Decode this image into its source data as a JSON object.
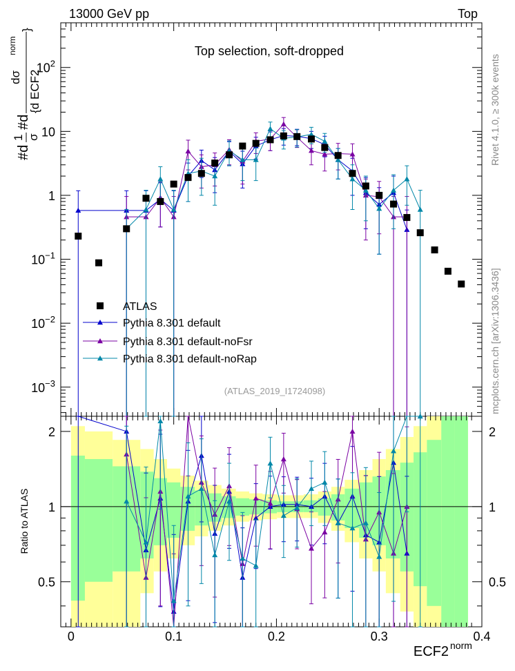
{
  "header": {
    "left": "13000 GeV pp",
    "right": "Top"
  },
  "side_right_top": "Rivet 4.1.0, ≥ 300k events",
  "side_right_bottom": "mcplots.cern.ch [arXiv:1306.3436]",
  "chart_data": {
    "type": "scatter",
    "title": "Top selection, soft-dropped",
    "analysis": "(ATLAS_2019_I1724098)",
    "xlabel": "ECF2",
    "xlabel_sup": "norm",
    "ylabel": "#d1/σ #d dσ/{d ECF2^norm}",
    "ylabel_parts": {
      "a": "#d",
      "b": "1",
      "c": "σ",
      "d": "#d",
      "e": "dσ",
      "f": "{d ECF2",
      "g": "norm",
      "h": "}"
    },
    "ratio_ylabel": "Ratio to ATLAS",
    "xlim": [
      -0.01,
      0.4
    ],
    "ylim": [
      0.00035,
      500
    ],
    "yscale": "log",
    "ratio_ylim": [
      0.33,
      2.3
    ],
    "x_ticks": [
      "0",
      "0.1",
      "0.2",
      "0.3",
      "0.4"
    ],
    "y_ticks": [
      {
        "base": "10",
        "exp": "−3"
      },
      {
        "base": "10",
        "exp": "−2"
      },
      {
        "base": "10",
        "exp": "−1"
      },
      {
        "base": "1",
        "exp": ""
      },
      {
        "base": "10",
        "exp": ""
      },
      {
        "base": "10",
        "exp": "2"
      }
    ],
    "ratio_ticks": [
      "0.5",
      "1",
      "2"
    ],
    "legend": [
      {
        "label": "ATLAS",
        "color": "#000000",
        "marker": "square"
      },
      {
        "label": "Pythia 8.301 default",
        "color": "#0000cc",
        "marker": "triangle"
      },
      {
        "label": "Pythia 8.301 default-noFsr",
        "color": "#7a00a3",
        "marker": "triangle"
      },
      {
        "label": "Pythia 8.301 default-noRap",
        "color": "#0087a8",
        "marker": "triangle"
      }
    ],
    "atlas": {
      "x": [
        0.007,
        0.027,
        0.054,
        0.073,
        0.087,
        0.1,
        0.114,
        0.127,
        0.14,
        0.154,
        0.167,
        0.18,
        0.194,
        0.207,
        0.22,
        0.234,
        0.247,
        0.26,
        0.274,
        0.287,
        0.3,
        0.314,
        0.327,
        0.34,
        0.354,
        0.367,
        0.38
      ],
      "y": [
        0.23,
        0.088,
        0.3,
        0.9,
        0.8,
        1.5,
        1.9,
        2.2,
        3.2,
        4.3,
        5.9,
        6.5,
        7.4,
        8.5,
        8.3,
        7.6,
        5.6,
        4.2,
        2.2,
        1.4,
        1.0,
        0.73,
        0.45,
        0.26,
        0.14,
        0.065,
        0.041
      ]
    },
    "series": [
      {
        "name": "Pythia 8.301 default",
        "x": [
          0.007,
          0.054,
          0.073,
          0.087,
          0.1,
          0.114,
          0.127,
          0.14,
          0.154,
          0.167,
          0.18,
          0.194,
          0.207,
          0.22,
          0.234,
          0.247,
          0.26,
          0.274,
          0.287,
          0.3,
          0.314,
          0.327
        ],
        "y": [
          0.58,
          0.58,
          0.58,
          0.87,
          0.58,
          2.0,
          3.5,
          2.5,
          4.9,
          3.1,
          5.9,
          7.4,
          8.6,
          8.4,
          7.7,
          6.2,
          3.6,
          2.4,
          1.1,
          0.72,
          1.1,
          0.29
        ],
        "err_lo": [
          0.58,
          0.58,
          0.58,
          0.55,
          0.58,
          1.2,
          1.6,
          1.4,
          2.0,
          1.8,
          2.2,
          2.4,
          2.5,
          2.4,
          2.3,
          2.2,
          1.8,
          1.4,
          0.8,
          0.6,
          1.1,
          0.29
        ],
        "err_hi": [
          0.6,
          0.6,
          0.6,
          0.7,
          0.6,
          1.2,
          1.6,
          1.4,
          2.0,
          1.8,
          2.2,
          2.4,
          2.5,
          2.4,
          2.3,
          2.2,
          1.8,
          1.4,
          0.8,
          0.6,
          0.9,
          0.3
        ],
        "ratio": [
          2.5,
          2.0,
          0.67,
          1.08,
          0.38,
          1.05,
          1.6,
          0.78,
          1.15,
          0.52,
          0.9,
          1.0,
          1.02,
          1.02,
          1.0,
          1.1,
          0.86,
          1.1,
          0.77,
          0.72,
          1.5,
          0.65
        ]
      },
      {
        "name": "Pythia 8.301 default-noFsr",
        "x": [
          0.054,
          0.073,
          0.087,
          0.1,
          0.114,
          0.127,
          0.14,
          0.154,
          0.167,
          0.18,
          0.194,
          0.207,
          0.22,
          0.234,
          0.247,
          0.26,
          0.274,
          0.287,
          0.3,
          0.314,
          0.327
        ],
        "y": [
          0.46,
          0.46,
          0.92,
          0.46,
          4.9,
          2.8,
          3.0,
          5.2,
          3.4,
          7.0,
          7.6,
          13.0,
          8.1,
          5.0,
          4.4,
          4.5,
          4.4,
          1.0,
          0.95,
          0.46,
          0.46
        ],
        "err_lo": [
          0.46,
          0.46,
          0.6,
          0.46,
          2.4,
          1.5,
          1.6,
          2.2,
          1.9,
          2.5,
          2.6,
          3.5,
          2.5,
          2.0,
          2.0,
          2.0,
          2.0,
          0.8,
          0.7,
          0.46,
          0.46
        ],
        "err_hi": [
          0.5,
          0.5,
          0.7,
          0.5,
          2.4,
          1.5,
          1.6,
          2.2,
          1.9,
          2.5,
          2.6,
          3.5,
          2.5,
          2.0,
          2.0,
          2.0,
          2.0,
          0.8,
          0.7,
          0.5,
          0.5
        ],
        "ratio": [
          1.62,
          0.52,
          1.15,
          0.31,
          2.6,
          1.25,
          0.93,
          1.21,
          0.59,
          1.08,
          1.03,
          1.55,
          0.98,
          0.68,
          0.79,
          1.07,
          2.0,
          0.74,
          0.95,
          0.65,
          1.0
        ]
      },
      {
        "name": "Pythia 8.301 default-noRap",
        "x": [
          0.054,
          0.073,
          0.087,
          0.1,
          0.114,
          0.127,
          0.14,
          0.154,
          0.167,
          0.18,
          0.194,
          0.207,
          0.22,
          0.234,
          0.247,
          0.26,
          0.274,
          0.287,
          0.3,
          0.314,
          0.327,
          0.34
        ],
        "y": [
          0.3,
          0.6,
          1.8,
          0.6,
          2.2,
          2.4,
          2.0,
          5.0,
          3.6,
          3.6,
          11.0,
          7.8,
          8.2,
          9.0,
          7.0,
          3.6,
          1.8,
          1.2,
          0.62,
          1.2,
          1.8,
          0.6
        ],
        "err_lo": [
          0.3,
          0.6,
          1.0,
          0.6,
          1.4,
          1.4,
          1.3,
          2.1,
          1.9,
          1.9,
          3.0,
          2.5,
          2.5,
          2.6,
          2.3,
          1.8,
          1.2,
          0.8,
          0.5,
          0.9,
          1.1,
          0.6
        ],
        "err_hi": [
          0.3,
          0.6,
          1.0,
          0.6,
          1.4,
          1.4,
          1.3,
          2.1,
          1.9,
          1.9,
          3.0,
          2.5,
          2.5,
          2.6,
          2.3,
          1.8,
          1.2,
          0.8,
          0.5,
          0.9,
          1.1,
          0.6
        ],
        "ratio": [
          1.05,
          0.72,
          2.2,
          0.42,
          1.1,
          1.18,
          0.64,
          1.05,
          0.62,
          0.58,
          1.49,
          0.92,
          0.99,
          1.18,
          1.25,
          0.86,
          0.82,
          0.86,
          0.63,
          1.67,
          2.45,
          2.3
        ]
      }
    ],
    "ratio_band": {
      "x_edges": [
        0.0,
        0.0135,
        0.0405,
        0.0675,
        0.0805,
        0.0935,
        0.1065,
        0.1205,
        0.1335,
        0.1465,
        0.1605,
        0.1735,
        0.1865,
        0.2005,
        0.2135,
        0.2265,
        0.2405,
        0.2535,
        0.2665,
        0.2805,
        0.2935,
        0.3065,
        0.3205,
        0.3335,
        0.3465,
        0.3605,
        0.3735,
        0.3865
      ],
      "inner_lo": [
        0.42,
        0.5,
        0.55,
        0.62,
        0.7,
        0.75,
        0.8,
        0.84,
        0.87,
        0.9,
        0.92,
        0.93,
        0.94,
        0.95,
        0.95,
        0.95,
        0.92,
        0.88,
        0.82,
        0.75,
        0.7,
        0.62,
        0.55,
        0.48,
        0.4,
        0.33,
        0.33
      ],
      "inner_hi": [
        1.6,
        1.55,
        1.45,
        1.38,
        1.3,
        1.25,
        1.2,
        1.16,
        1.13,
        1.1,
        1.08,
        1.07,
        1.06,
        1.05,
        1.05,
        1.06,
        1.08,
        1.12,
        1.18,
        1.25,
        1.32,
        1.4,
        1.5,
        1.65,
        1.85,
        2.3,
        2.3
      ],
      "outer_lo": [
        0.33,
        0.33,
        0.33,
        0.45,
        0.55,
        0.62,
        0.7,
        0.76,
        0.8,
        0.84,
        0.87,
        0.88,
        0.89,
        0.9,
        0.9,
        0.9,
        0.86,
        0.8,
        0.72,
        0.62,
        0.55,
        0.45,
        0.38,
        0.33,
        0.33,
        0.33,
        0.33
      ],
      "outer_hi": [
        2.1,
        2.0,
        1.85,
        1.7,
        1.55,
        1.42,
        1.33,
        1.27,
        1.22,
        1.18,
        1.15,
        1.13,
        1.12,
        1.11,
        1.11,
        1.12,
        1.15,
        1.2,
        1.28,
        1.4,
        1.55,
        1.7,
        1.9,
        2.1,
        2.3,
        2.3,
        2.3
      ]
    }
  }
}
